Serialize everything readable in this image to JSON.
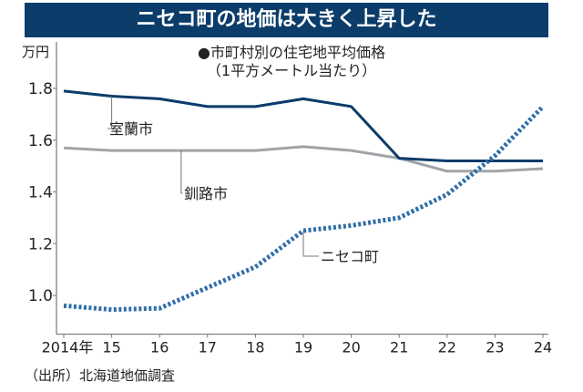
{
  "chart_data": {
    "type": "line",
    "title": "ニセコ町の地価は大きく上昇した",
    "subtitle": [
      "●市町村別の住宅地平均価格",
      "（1平方メートル当たり）"
    ],
    "ylabel": "万円",
    "xlabel": "",
    "x": [
      2014,
      2015,
      2016,
      2017,
      2018,
      2019,
      2020,
      2021,
      2022,
      2023,
      2024
    ],
    "x_tick_labels": [
      "2014年",
      "15",
      "16",
      "17",
      "18",
      "19",
      "20",
      "21",
      "22",
      "23",
      "24"
    ],
    "y_ticks": [
      1.0,
      1.2,
      1.4,
      1.6,
      1.8
    ],
    "y_tick_labels": [
      "1.0",
      "1.2",
      "1.4",
      "1.6",
      "1.8"
    ],
    "ylim": [
      0.85,
      1.98
    ],
    "grid": false,
    "series": [
      {
        "name": "室蘭市",
        "color": "#0b3c6a",
        "style": "solid",
        "values": [
          1.79,
          1.77,
          1.76,
          1.73,
          1.73,
          1.76,
          1.73,
          1.53,
          1.52,
          1.52,
          1.52
        ]
      },
      {
        "name": "釧路市",
        "color": "#a0a4a8",
        "style": "solid",
        "values": [
          1.57,
          1.56,
          1.56,
          1.56,
          1.56,
          1.575,
          1.56,
          1.53,
          1.48,
          1.48,
          1.49
        ]
      },
      {
        "name": "ニセコ町",
        "color": "#2f6ea8",
        "style": "dotted",
        "values": [
          0.96,
          0.945,
          0.95,
          1.03,
          1.11,
          1.25,
          1.27,
          1.3,
          1.39,
          1.54,
          1.73
        ]
      }
    ],
    "source": "（出所）北海道地価調査"
  }
}
